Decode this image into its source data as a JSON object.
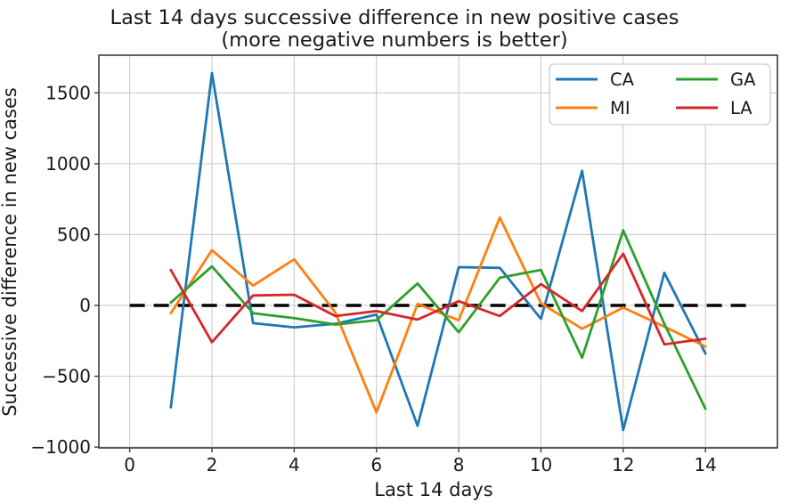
{
  "chart_data": {
    "type": "line",
    "title": "Last 14 days successive difference in new positive cases",
    "subtitle": "(more negative numbers is better)",
    "xlabel": "Last 14 days",
    "ylabel": "Successive difference in new cases",
    "x": [
      1,
      2,
      3,
      4,
      5,
      6,
      7,
      8,
      9,
      10,
      11,
      12,
      13,
      14
    ],
    "series": [
      {
        "name": "CA",
        "color": "#1f77b4",
        "values": [
          -720,
          1640,
          -125,
          -155,
          -130,
          -65,
          -850,
          270,
          265,
          -95,
          950,
          -880,
          230,
          -340
        ]
      },
      {
        "name": "MI",
        "color": "#ff7f0e",
        "values": [
          -55,
          390,
          140,
          325,
          -50,
          -755,
          10,
          -105,
          620,
          15,
          -165,
          -15,
          -150,
          -290
        ]
      },
      {
        "name": "GA",
        "color": "#2ca02c",
        "values": [
          20,
          275,
          -55,
          -90,
          -135,
          -105,
          155,
          -190,
          195,
          250,
          -370,
          530,
          -130,
          -730
        ]
      },
      {
        "name": "LA",
        "color": "#d62728",
        "values": [
          250,
          -260,
          70,
          75,
          -75,
          -40,
          -100,
          30,
          -75,
          150,
          -40,
          365,
          -275,
          -235
        ]
      }
    ],
    "xticks": [
      0,
      2,
      4,
      6,
      8,
      10,
      12,
      14
    ],
    "yticks": [
      -1000,
      -500,
      0,
      500,
      1000,
      1500
    ],
    "xlim": [
      -0.75,
      15.75
    ],
    "ylim": [
      -1006,
      1766
    ],
    "grid": true,
    "grid_color": "#cccccc",
    "spine_color": "#3c3c3c",
    "background_color": "#ffffff",
    "zero_line": {
      "y": 0,
      "from_x": 0,
      "to_x": 15,
      "color": "#000000",
      "style": "dashed"
    },
    "legend": {
      "position": "upper right",
      "columns": 2,
      "entries": [
        "CA",
        "MI",
        "GA",
        "LA"
      ]
    }
  }
}
